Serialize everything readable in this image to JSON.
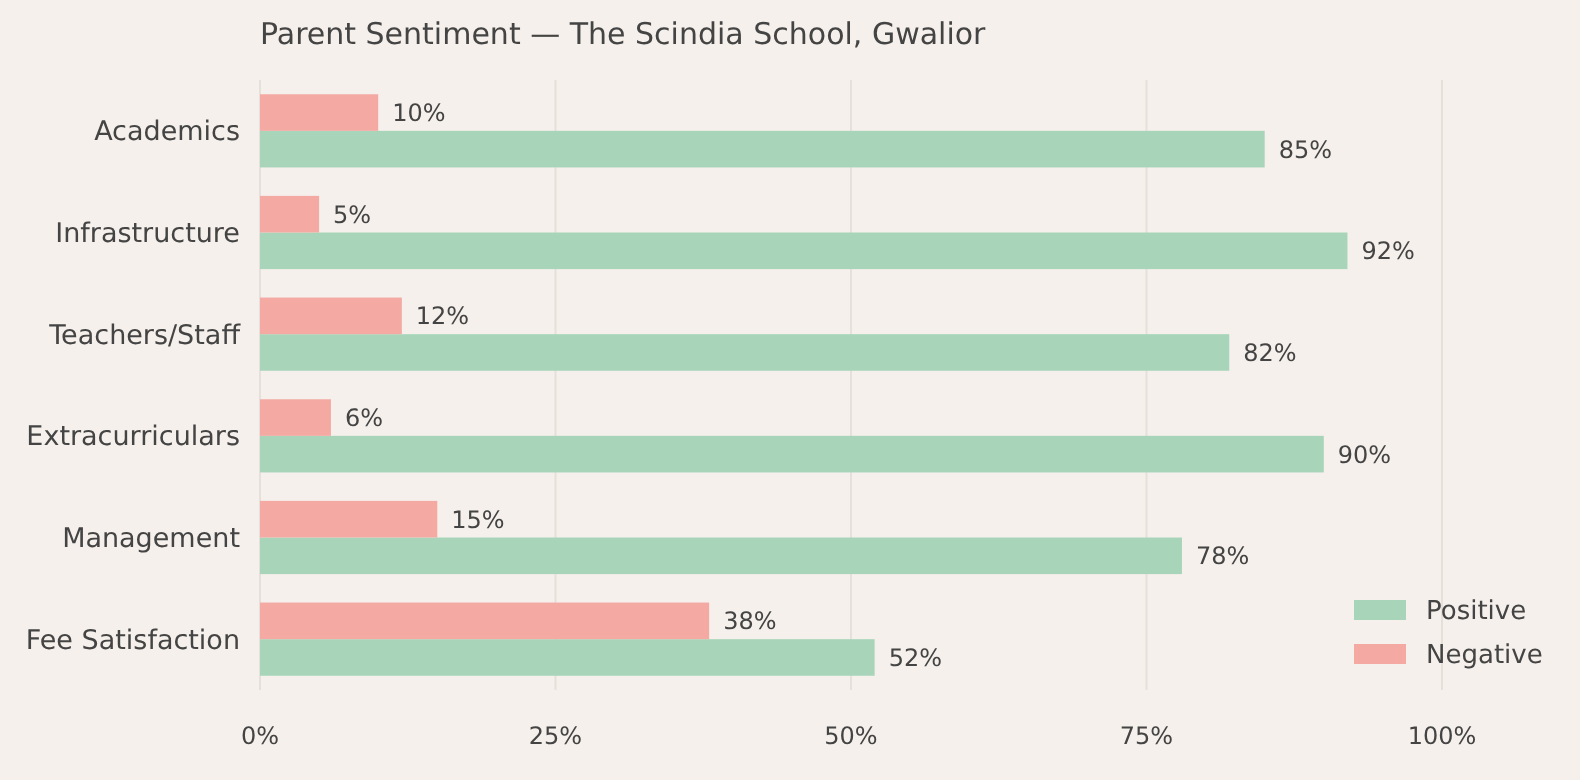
{
  "chart_data": {
    "type": "bar",
    "orientation": "horizontal",
    "title": "Parent Sentiment — The Scindia School, Gwalior",
    "categories": [
      "Academics",
      "Infrastructure",
      "Teachers/Staff",
      "Extracurriculars",
      "Management",
      "Fee Satisfaction"
    ],
    "series": [
      {
        "name": "Positive",
        "color": "#a8d5ba",
        "values": [
          85,
          92,
          82,
          90,
          78,
          52
        ],
        "value_labels": [
          "85%",
          "92%",
          "82%",
          "90%",
          "78%",
          "52%"
        ]
      },
      {
        "name": "Negative",
        "color": "#f4a9a3",
        "values": [
          10,
          5,
          12,
          6,
          15,
          38
        ],
        "value_labels": [
          "10%",
          "5%",
          "12%",
          "6%",
          "15%",
          "38%"
        ]
      }
    ],
    "xlim": [
      0,
      100
    ],
    "xticks": [
      {
        "value": 0,
        "label": "0%"
      },
      {
        "value": 25,
        "label": "25%"
      },
      {
        "value": 50,
        "label": "50%"
      },
      {
        "value": 75,
        "label": "75%"
      },
      {
        "value": 100,
        "label": "100%"
      }
    ],
    "grid": "x",
    "legend": "bottom right"
  }
}
